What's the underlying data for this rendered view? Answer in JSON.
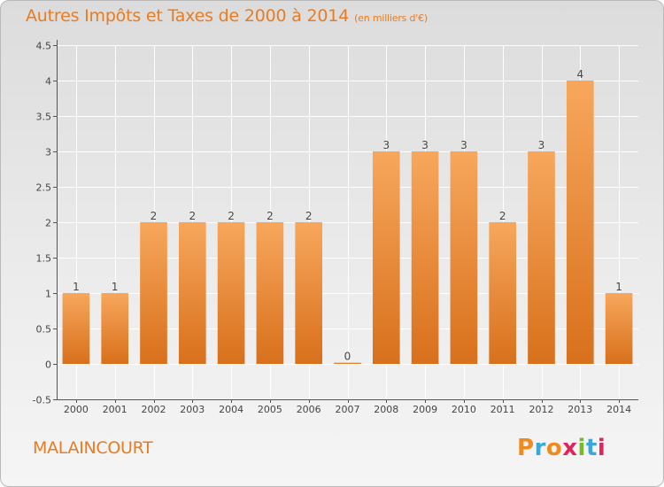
{
  "header": {
    "title": "Autres Impôts et Taxes de 2000 à 2014",
    "subtitle": "(en milliers d'€)"
  },
  "footer": {
    "commune": "MALAINCOURT",
    "logo_text": "Proxiti",
    "logo_colors": [
      "#f08a1e",
      "#3aa8d8",
      "#f08a1e",
      "#e0245e",
      "#78b928",
      "#3aa8d8",
      "#e0245e"
    ]
  },
  "colors": {
    "bar_light": "#f7a75c",
    "bar_dark": "#d8701c",
    "accent": "#e87c22",
    "grid": "#ffffff",
    "axis": "#555555"
  },
  "chart_data": {
    "type": "bar",
    "title": "Autres Impôts et Taxes de 2000 à 2014",
    "subtitle": "(en milliers d'€)",
    "xlabel": "",
    "ylabel": "",
    "categories": [
      "2000",
      "2001",
      "2002",
      "2003",
      "2004",
      "2005",
      "2006",
      "2007",
      "2008",
      "2009",
      "2010",
      "2011",
      "2012",
      "2013",
      "2014"
    ],
    "values": [
      1,
      1,
      2,
      2,
      2,
      2,
      2,
      0,
      3,
      3,
      3,
      2,
      3,
      4,
      1
    ],
    "data_labels": [
      "1",
      "1",
      "2",
      "2",
      "2",
      "2",
      "2",
      "0",
      "3",
      "3",
      "3",
      "2",
      "3",
      "4",
      "1"
    ],
    "ylim": [
      -0.5,
      4.5
    ],
    "yticks": [
      -0.5,
      0,
      0.5,
      1,
      1.5,
      2,
      2.5,
      3,
      3.5,
      4,
      4.5
    ],
    "ytick_labels": [
      "-0.5",
      "0",
      "0.5",
      "1",
      "1.5",
      "2",
      "2.5",
      "3",
      "3.5",
      "4",
      "4.5"
    ],
    "grid": true,
    "legend": "none"
  }
}
